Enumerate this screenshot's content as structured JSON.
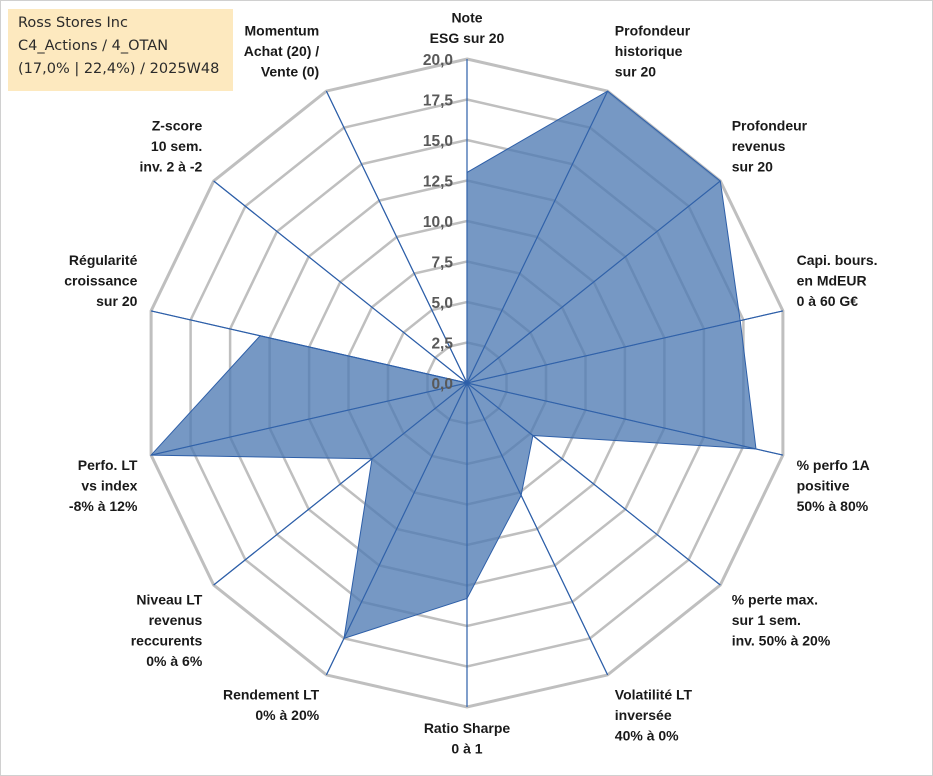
{
  "info": {
    "company": "Ross Stores Inc",
    "portfolio": "C4_Actions / 4_OTAN",
    "stats": "(17,0% | 22,4%) / 2025W48"
  },
  "colors": {
    "grid": "#bfbfbf",
    "spoke": "#2e5fa8",
    "fill": "#4f7bb3",
    "info_bg": "#fde9bf"
  },
  "chart_data": {
    "type": "radar",
    "title": "",
    "rmin": 0,
    "rmax": 20,
    "ticks": [
      "0,0",
      "2,5",
      "5,0",
      "7,5",
      "10,0",
      "12,5",
      "15,0",
      "17,5",
      "20,0"
    ],
    "tick_values": [
      0,
      2.5,
      5,
      7.5,
      10,
      12.5,
      15,
      17.5,
      20
    ],
    "axes": [
      {
        "lines": [
          "Note",
          "ESG sur 20"
        ],
        "value": 13
      },
      {
        "lines": [
          "Profondeur",
          "historique",
          "sur 20"
        ],
        "value": 20
      },
      {
        "lines": [
          "Profondeur",
          "revenus",
          "sur 20"
        ],
        "value": 20
      },
      {
        "lines": [
          "Capi. bours.",
          "en MdEUR",
          "0 à 60 G€"
        ],
        "value": 17.3
      },
      {
        "lines": [
          "% perfo 1A",
          "positive",
          "50% à 80%"
        ],
        "value": 18.3
      },
      {
        "lines": [
          "% perte max.",
          "sur 1 sem.",
          "inv. 50% à 20%"
        ],
        "value": 5.2
      },
      {
        "lines": [
          "Volatilité LT",
          "inversée",
          "40% à 0%"
        ],
        "value": 7.7
      },
      {
        "lines": [
          "Ratio Sharpe",
          "0 à 1"
        ],
        "value": 13.3
      },
      {
        "lines": [
          "Rendement LT",
          "0% à 20%"
        ],
        "value": 17.5
      },
      {
        "lines": [
          "Niveau LT",
          "revenus",
          "reccurents",
          "0% à 6%"
        ],
        "value": 7.5
      },
      {
        "lines": [
          "Perfo. LT",
          "vs index",
          "-8% à 12%"
        ],
        "value": 20
      },
      {
        "lines": [
          "Régularité",
          "croissance",
          "sur 20"
        ],
        "value": 13.1
      },
      {
        "lines": [
          "Z-score",
          "10 sem.",
          "inv. 2 à -2"
        ],
        "value": 0
      },
      {
        "lines": [
          "Momentum",
          "Achat (20) /",
          "Vente (0)"
        ],
        "value": 0
      }
    ]
  }
}
